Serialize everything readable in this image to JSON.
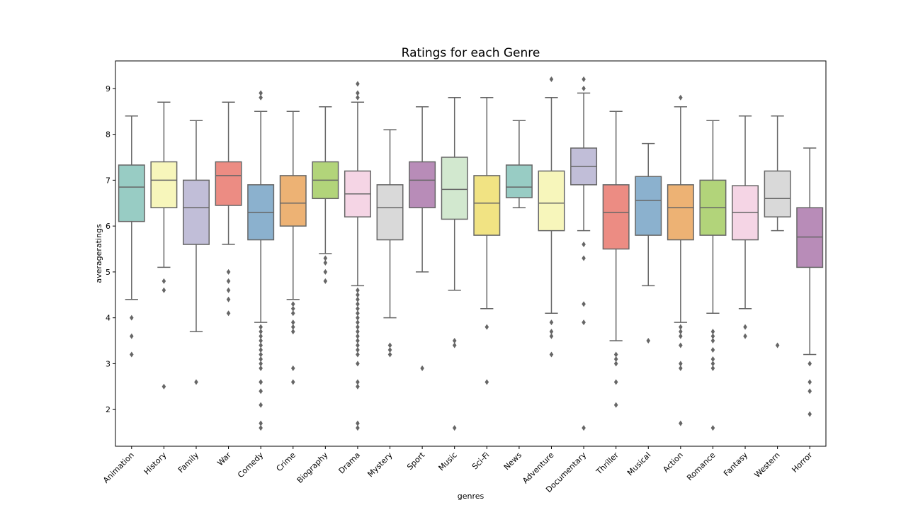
{
  "chart_data": {
    "type": "box",
    "title": "Ratings for each Genre",
    "xlabel": "genres",
    "ylabel": "averageratings",
    "ylim": [
      1.2,
      9.6
    ],
    "yticks": [
      2,
      3,
      4,
      5,
      6,
      7,
      8,
      9
    ],
    "grid": false,
    "legend": "none",
    "categories": [
      "Animation",
      "History",
      "Family",
      "War",
      "Comedy",
      "Crime",
      "Biography",
      "Drama",
      "Mystery",
      "Sport",
      "Music",
      "Sci-Fi",
      "News",
      "Adventure",
      "Documentary",
      "Thriller",
      "Musical",
      "Action",
      "Romance",
      "Fantasy",
      "Western",
      "Horror"
    ],
    "colors": [
      "#98CCC4",
      "#F7F6BB",
      "#C1BED8",
      "#EC8C83",
      "#8BB1CE",
      "#EDB274",
      "#B2D47A",
      "#F5D5E5",
      "#D9D9D9",
      "#B88CB8",
      "#D2E8CF",
      "#F1E383",
      "#98CCC4",
      "#F7F6BB",
      "#C1BED8",
      "#EC8C83",
      "#8BB1CE",
      "#EDB274",
      "#B2D47A",
      "#F5D5E5",
      "#D9D9D9",
      "#B88CB8"
    ],
    "line_color": "#666666",
    "boxes": [
      {
        "whislo": 4.4,
        "q1": 6.1,
        "med": 6.85,
        "q3": 7.33,
        "whishi": 8.4,
        "fliers": [
          4.0,
          3.6,
          3.2
        ]
      },
      {
        "whislo": 5.1,
        "q1": 6.4,
        "med": 7.0,
        "q3": 7.4,
        "whishi": 8.7,
        "fliers": [
          4.8,
          4.6,
          2.5
        ]
      },
      {
        "whislo": 3.7,
        "q1": 5.6,
        "med": 6.4,
        "q3": 7.0,
        "whishi": 8.3,
        "fliers": [
          2.6
        ]
      },
      {
        "whislo": 5.6,
        "q1": 6.45,
        "med": 7.1,
        "q3": 7.4,
        "whishi": 8.7,
        "fliers": [
          5.0,
          4.8,
          4.6,
          4.4,
          4.1
        ]
      },
      {
        "whislo": 3.9,
        "q1": 5.7,
        "med": 6.3,
        "q3": 6.9,
        "whishi": 8.5,
        "fliers": [
          8.9,
          8.8,
          3.8,
          3.7,
          3.6,
          3.5,
          3.4,
          3.3,
          3.2,
          3.1,
          3.0,
          2.9,
          2.6,
          2.6,
          2.4,
          2.1,
          1.7,
          1.6
        ]
      },
      {
        "whislo": 4.4,
        "q1": 6.0,
        "med": 6.5,
        "q3": 7.1,
        "whishi": 8.5,
        "fliers": [
          4.3,
          4.2,
          4.1,
          3.9,
          3.8,
          3.7,
          2.9,
          2.6
        ]
      },
      {
        "whislo": 5.4,
        "q1": 6.6,
        "med": 7.0,
        "q3": 7.4,
        "whishi": 8.6,
        "fliers": [
          5.3,
          5.2,
          5.0,
          4.8
        ]
      },
      {
        "whislo": 4.7,
        "q1": 6.2,
        "med": 6.7,
        "q3": 7.2,
        "whishi": 8.7,
        "fliers": [
          9.1,
          8.9,
          8.8,
          4.6,
          4.5,
          4.4,
          4.3,
          4.2,
          4.1,
          4.0,
          3.9,
          3.8,
          3.7,
          3.6,
          3.5,
          3.4,
          3.3,
          3.2,
          3.0,
          2.6,
          2.5,
          1.7,
          1.6
        ]
      },
      {
        "whislo": 4.0,
        "q1": 5.7,
        "med": 6.4,
        "q3": 6.9,
        "whishi": 8.1,
        "fliers": [
          3.4,
          3.3,
          3.2
        ]
      },
      {
        "whislo": 5.0,
        "q1": 6.4,
        "med": 7.0,
        "q3": 7.4,
        "whishi": 8.6,
        "fliers": [
          2.9
        ]
      },
      {
        "whislo": 4.6,
        "q1": 6.15,
        "med": 6.8,
        "q3": 7.5,
        "whishi": 8.8,
        "fliers": [
          3.5,
          3.4,
          1.6
        ]
      },
      {
        "whislo": 4.2,
        "q1": 5.8,
        "med": 6.5,
        "q3": 7.1,
        "whishi": 8.8,
        "fliers": [
          3.8,
          2.6
        ]
      },
      {
        "whislo": 6.4,
        "q1": 6.62,
        "med": 6.85,
        "q3": 7.33,
        "whishi": 8.3,
        "fliers": []
      },
      {
        "whislo": 4.1,
        "q1": 5.9,
        "med": 6.5,
        "q3": 7.2,
        "whishi": 8.8,
        "fliers": [
          9.2,
          3.9,
          3.7,
          3.6,
          3.2
        ]
      },
      {
        "whislo": 5.9,
        "q1": 6.9,
        "med": 7.3,
        "q3": 7.7,
        "whishi": 8.9,
        "fliers": [
          9.2,
          9.0,
          5.6,
          5.3,
          4.3,
          3.9,
          1.6
        ]
      },
      {
        "whislo": 3.5,
        "q1": 5.5,
        "med": 6.3,
        "q3": 6.9,
        "whishi": 8.5,
        "fliers": [
          3.2,
          3.1,
          3.0,
          2.6,
          2.1
        ]
      },
      {
        "whislo": 4.7,
        "q1": 5.8,
        "med": 6.56,
        "q3": 7.08,
        "whishi": 7.8,
        "fliers": [
          3.5
        ]
      },
      {
        "whislo": 3.9,
        "q1": 5.7,
        "med": 6.4,
        "q3": 6.9,
        "whishi": 8.6,
        "fliers": [
          8.8,
          3.8,
          3.7,
          3.6,
          3.4,
          3.0,
          2.9,
          1.7
        ]
      },
      {
        "whislo": 4.1,
        "q1": 5.8,
        "med": 6.4,
        "q3": 7.0,
        "whishi": 8.3,
        "fliers": [
          3.7,
          3.6,
          3.5,
          3.3,
          3.1,
          3.0,
          2.9,
          1.6
        ]
      },
      {
        "whislo": 4.2,
        "q1": 5.7,
        "med": 6.3,
        "q3": 6.88,
        "whishi": 8.4,
        "fliers": [
          3.8,
          3.6
        ]
      },
      {
        "whislo": 5.9,
        "q1": 6.2,
        "med": 6.6,
        "q3": 7.2,
        "whishi": 8.4,
        "fliers": [
          3.4
        ]
      },
      {
        "whislo": 3.2,
        "q1": 5.1,
        "med": 5.76,
        "q3": 6.4,
        "whishi": 7.7,
        "fliers": [
          3.0,
          2.6,
          2.4,
          1.9
        ]
      }
    ]
  }
}
